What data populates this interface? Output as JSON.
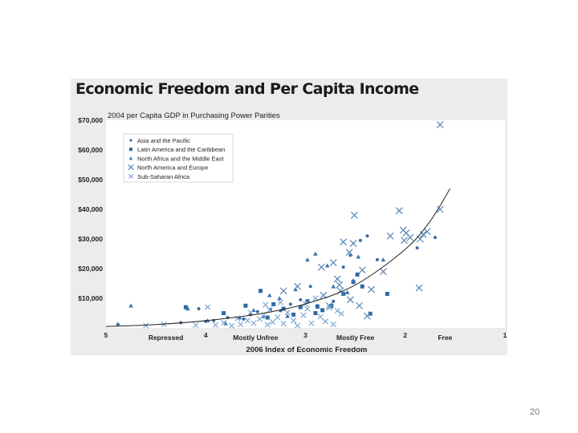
{
  "slide_number": "20",
  "colors": {
    "asia": "#3d6c9e",
    "latin": "#2d6aa3",
    "mena": "#3a73ad",
    "north": "#5684b4",
    "africa": "#7fa8d1",
    "curve": "#222222"
  },
  "chart_data": {
    "type": "scatter",
    "title": "Economic Freedom and Per Capita Income",
    "subtitle": "2004 per Capita GDP in Purchasing Power Parities",
    "xlabel": "2006 Index of Economic Freedom",
    "ylabel": "",
    "xlim": [
      5,
      1
    ],
    "ylim": [
      0,
      70000
    ],
    "x_ticks": [
      "5",
      "4",
      "3",
      "2",
      "1"
    ],
    "y_ticks": [
      "$70,000",
      "$60,000",
      "$50,000",
      "$40,000",
      "$30,000",
      "$20,000",
      "$10,000"
    ],
    "y_tick_values": [
      70000,
      60000,
      50000,
      40000,
      30000,
      20000,
      10000
    ],
    "category_labels": [
      {
        "text": "Repressed",
        "x": 4.4
      },
      {
        "text": "Mostly Unfree",
        "x": 3.5
      },
      {
        "text": "Mostly Free",
        "x": 2.5
      },
      {
        "text": "Free",
        "x": 1.6
      }
    ],
    "grid": false,
    "legend_position": "top-left",
    "series": [
      {
        "name": "Asia and the Pacific",
        "marker": "circle",
        "points": [
          [
            4.88,
            1200
          ],
          [
            4.25,
            1800
          ],
          [
            4.0,
            2200
          ],
          [
            3.92,
            2500
          ],
          [
            3.78,
            3500
          ],
          [
            3.62,
            3000
          ],
          [
            3.55,
            4500
          ],
          [
            3.48,
            5500
          ],
          [
            3.35,
            6200
          ],
          [
            3.25,
            5800
          ],
          [
            3.15,
            8000
          ],
          [
            3.05,
            9500
          ],
          [
            2.88,
            7500
          ],
          [
            2.72,
            9000
          ],
          [
            2.55,
            24500
          ],
          [
            2.45,
            29500
          ],
          [
            2.38,
            31000
          ],
          [
            2.28,
            23000
          ],
          [
            1.88,
            27000
          ],
          [
            1.7,
            30500
          ],
          [
            4.07,
            6500
          ],
          [
            3.42,
            3800
          ],
          [
            2.95,
            14000
          ],
          [
            2.62,
            20500
          ]
        ]
      },
      {
        "name": "Latin America and the Caribbean",
        "marker": "square",
        "points": [
          [
            4.2,
            7000
          ],
          [
            3.82,
            5000
          ],
          [
            3.6,
            7500
          ],
          [
            3.45,
            12500
          ],
          [
            3.38,
            3500
          ],
          [
            3.32,
            8000
          ],
          [
            3.22,
            6500
          ],
          [
            3.12,
            4500
          ],
          [
            3.05,
            7000
          ],
          [
            2.98,
            9000
          ],
          [
            2.9,
            5000
          ],
          [
            2.83,
            6000
          ],
          [
            2.74,
            7500
          ],
          [
            2.62,
            11500
          ],
          [
            2.48,
            18000
          ],
          [
            2.52,
            15500
          ],
          [
            2.43,
            14000
          ],
          [
            2.18,
            11500
          ],
          [
            2.35,
            4800
          ],
          [
            2.88,
            7200
          ]
        ]
      },
      {
        "name": "North Africa and the Middle East",
        "marker": "triangle",
        "points": [
          [
            4.75,
            7500
          ],
          [
            4.18,
            6500
          ],
          [
            3.98,
            2500
          ],
          [
            3.66,
            3500
          ],
          [
            3.52,
            6000
          ],
          [
            3.36,
            11000
          ],
          [
            3.26,
            10000
          ],
          [
            3.1,
            13000
          ],
          [
            2.98,
            23000
          ],
          [
            2.9,
            25000
          ],
          [
            2.78,
            21000
          ],
          [
            2.72,
            14000
          ],
          [
            2.58,
            12000
          ],
          [
            2.52,
            16000
          ],
          [
            2.47,
            24000
          ],
          [
            2.22,
            23000
          ],
          [
            3.8,
            1500
          ],
          [
            3.18,
            4000
          ]
        ]
      },
      {
        "name": "North America and Europe",
        "marker": "x",
        "points": [
          [
            1.65,
            68500
          ],
          [
            1.65,
            40000
          ],
          [
            2.06,
            39500
          ],
          [
            2.51,
            38000
          ],
          [
            2.02,
            33000
          ],
          [
            2.15,
            31000
          ],
          [
            1.95,
            30500
          ],
          [
            2.01,
            29500
          ],
          [
            1.99,
            32000
          ],
          [
            1.78,
            32500
          ],
          [
            1.82,
            31500
          ],
          [
            1.85,
            30000
          ],
          [
            2.52,
            28500
          ],
          [
            2.62,
            29000
          ],
          [
            2.56,
            25500
          ],
          [
            2.43,
            19500
          ],
          [
            2.68,
            16500
          ],
          [
            2.22,
            19000
          ],
          [
            2.65,
            12500
          ],
          [
            2.72,
            22000
          ],
          [
            2.84,
            20500
          ],
          [
            3.08,
            14000
          ],
          [
            2.34,
            13000
          ],
          [
            2.46,
            7500
          ],
          [
            2.55,
            9500
          ],
          [
            2.66,
            14500
          ],
          [
            2.76,
            7500
          ],
          [
            1.86,
            13500
          ],
          [
            2.38,
            4000
          ],
          [
            3.22,
            12500
          ],
          [
            2.82,
            11000
          ]
        ]
      },
      {
        "name": "Sub-Saharan Africa",
        "marker": "x",
        "points": [
          [
            4.6,
            800
          ],
          [
            4.42,
            1200
          ],
          [
            4.1,
            900
          ],
          [
            3.98,
            7000
          ],
          [
            3.9,
            1000
          ],
          [
            3.82,
            1800
          ],
          [
            3.74,
            700
          ],
          [
            3.65,
            1200
          ],
          [
            3.58,
            2500
          ],
          [
            3.52,
            1600
          ],
          [
            3.46,
            3000
          ],
          [
            3.42,
            4200
          ],
          [
            3.38,
            1100
          ],
          [
            3.33,
            2000
          ],
          [
            3.28,
            3600
          ],
          [
            3.22,
            1500
          ],
          [
            3.18,
            5200
          ],
          [
            3.12,
            2500
          ],
          [
            3.08,
            800
          ],
          [
            3.02,
            4300
          ],
          [
            2.98,
            6500
          ],
          [
            2.94,
            1600
          ],
          [
            2.9,
            10000
          ],
          [
            2.85,
            3800
          ],
          [
            2.8,
            2200
          ],
          [
            2.76,
            6800
          ],
          [
            2.72,
            1200
          ],
          [
            2.68,
            5800
          ],
          [
            2.64,
            4800
          ],
          [
            3.4,
            7800
          ],
          [
            3.25,
            8600
          ],
          [
            3.0,
            8100
          ],
          [
            3.55,
            5200
          ],
          [
            3.68,
            3200
          ],
          [
            3.36,
            6100
          ]
        ]
      }
    ],
    "trend_curve": {
      "points": [
        [
          5,
          500
        ],
        [
          4.5,
          1150
        ],
        [
          4.0,
          2450
        ],
        [
          3.5,
          4550
        ],
        [
          3.0,
          8100
        ],
        [
          2.5,
          14500
        ],
        [
          2.0,
          26500
        ],
        [
          1.75,
          36000
        ],
        [
          1.55,
          47000
        ]
      ]
    }
  }
}
